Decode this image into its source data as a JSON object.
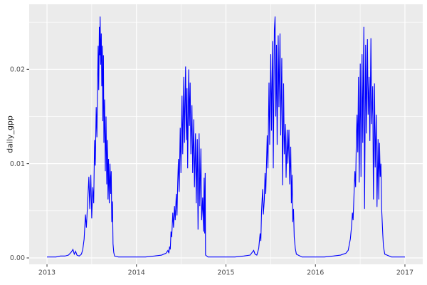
{
  "figure": {
    "background": "#FFFFFF",
    "panel_bg": "#EBEBEB",
    "grid_major_color": "#FFFFFF",
    "grid_minor_color": "#FFFFFF",
    "tick_mark_color": "#333333",
    "axis_text_color": "#4D4D4D",
    "axis_title_color": "#1A1A1A"
  },
  "chart_data": {
    "type": "line",
    "title": "",
    "xlabel": "",
    "ylabel": "daily_gpp",
    "legend_position": "none",
    "grid": true,
    "xlim": [
      2012.801,
      2017.199
    ],
    "ylim": [
      -0.00068,
      0.0269
    ],
    "x_ticks": [
      {
        "value": 2013,
        "label": "2013"
      },
      {
        "value": 2014,
        "label": "2014"
      },
      {
        "value": 2015,
        "label": "2015"
      },
      {
        "value": 2016,
        "label": "2016"
      },
      {
        "value": 2017,
        "label": "2017"
      }
    ],
    "y_ticks": [
      {
        "value": 0.0,
        "label": "0.00"
      },
      {
        "value": 0.01,
        "label": "0.01"
      },
      {
        "value": 0.02,
        "label": "0.02"
      }
    ],
    "x_minor_gridlines": [
      2013.5,
      2014.5,
      2015.5,
      2016.5
    ],
    "y_minor_gridlines": [
      0.005,
      0.015,
      0.025
    ],
    "series": [
      {
        "name": "daily_gpp",
        "color": "#0000FF",
        "points": [
          [
            2013.0,
            0.0001
          ],
          [
            2013.05,
            0.0001
          ],
          [
            2013.1,
            0.0001
          ],
          [
            2013.15,
            0.0002
          ],
          [
            2013.2,
            0.0002
          ],
          [
            2013.24,
            0.0003
          ],
          [
            2013.27,
            0.0006
          ],
          [
            2013.29,
            0.0009
          ],
          [
            2013.305,
            0.0004
          ],
          [
            2013.32,
            0.0007
          ],
          [
            2013.335,
            0.0003
          ],
          [
            2013.36,
            0.0002
          ],
          [
            2013.385,
            0.0004
          ],
          [
            2013.4,
            0.0009
          ],
          [
            2013.415,
            0.002
          ],
          [
            2013.43,
            0.0046
          ],
          [
            2013.44,
            0.0032
          ],
          [
            2013.455,
            0.006
          ],
          [
            2013.468,
            0.0086
          ],
          [
            2013.478,
            0.0052
          ],
          [
            2013.49,
            0.0088
          ],
          [
            2013.5,
            0.0042
          ],
          [
            2013.512,
            0.0075
          ],
          [
            2013.522,
            0.0058
          ],
          [
            2013.532,
            0.0125
          ],
          [
            2013.54,
            0.0098
          ],
          [
            2013.55,
            0.016
          ],
          [
            2013.558,
            0.0128
          ],
          [
            2013.565,
            0.0182
          ],
          [
            2013.572,
            0.0225
          ],
          [
            2013.578,
            0.0178
          ],
          [
            2013.585,
            0.0245
          ],
          [
            2013.59,
            0.0215
          ],
          [
            2013.594,
            0.0256
          ],
          [
            2013.6,
            0.0205
          ],
          [
            2013.607,
            0.0238
          ],
          [
            2013.612,
            0.0182
          ],
          [
            2013.619,
            0.0225
          ],
          [
            2013.624,
            0.0145
          ],
          [
            2013.631,
            0.0215
          ],
          [
            2013.636,
            0.0122
          ],
          [
            2013.644,
            0.0168
          ],
          [
            2013.652,
            0.0092
          ],
          [
            2013.66,
            0.015
          ],
          [
            2013.668,
            0.0078
          ],
          [
            2013.676,
            0.0125
          ],
          [
            2013.682,
            0.0062
          ],
          [
            2013.688,
            0.0105
          ],
          [
            2013.696,
            0.0058
          ],
          [
            2013.704,
            0.01
          ],
          [
            2013.712,
            0.0068
          ],
          [
            2013.718,
            0.0092
          ],
          [
            2013.724,
            0.0038
          ],
          [
            2013.732,
            0.006
          ],
          [
            2013.738,
            0.0015
          ],
          [
            2013.746,
            0.0006
          ],
          [
            2013.755,
            0.0002
          ],
          [
            2013.8,
            0.0001
          ],
          [
            2013.9,
            0.0001
          ],
          [
            2014.0,
            0.0001
          ],
          [
            2014.1,
            0.0001
          ],
          [
            2014.2,
            0.0002
          ],
          [
            2014.28,
            0.0003
          ],
          [
            2014.33,
            0.0005
          ],
          [
            2014.352,
            0.0008
          ],
          [
            2014.362,
            0.0005
          ],
          [
            2014.37,
            0.0012
          ],
          [
            2014.378,
            0.0009
          ],
          [
            2014.386,
            0.0028
          ],
          [
            2014.394,
            0.0022
          ],
          [
            2014.406,
            0.0048
          ],
          [
            2014.414,
            0.0032
          ],
          [
            2014.425,
            0.0055
          ],
          [
            2014.433,
            0.004
          ],
          [
            2014.445,
            0.0068
          ],
          [
            2014.453,
            0.0045
          ],
          [
            2014.461,
            0.008
          ],
          [
            2014.469,
            0.0105
          ],
          [
            2014.477,
            0.007
          ],
          [
            2014.489,
            0.0138
          ],
          [
            2014.497,
            0.009
          ],
          [
            2014.509,
            0.0172
          ],
          [
            2014.517,
            0.011
          ],
          [
            2014.529,
            0.0192
          ],
          [
            2014.537,
            0.0122
          ],
          [
            2014.549,
            0.0203
          ],
          [
            2014.557,
            0.0125
          ],
          [
            2014.565,
            0.018
          ],
          [
            2014.572,
            0.0095
          ],
          [
            2014.584,
            0.02
          ],
          [
            2014.592,
            0.014
          ],
          [
            2014.6,
            0.0186
          ],
          [
            2014.608,
            0.011
          ],
          [
            2014.62,
            0.0162
          ],
          [
            2014.628,
            0.009
          ],
          [
            2014.64,
            0.0147
          ],
          [
            2014.648,
            0.0075
          ],
          [
            2014.66,
            0.0132
          ],
          [
            2014.668,
            0.0058
          ],
          [
            2014.68,
            0.0126
          ],
          [
            2014.688,
            0.003
          ],
          [
            2014.7,
            0.0132
          ],
          [
            2014.708,
            0.0055
          ],
          [
            2014.72,
            0.0116
          ],
          [
            2014.728,
            0.004
          ],
          [
            2014.74,
            0.0064
          ],
          [
            2014.748,
            0.0028
          ],
          [
            2014.756,
            0.0085
          ],
          [
            2014.762,
            0.0026
          ],
          [
            2014.768,
            0.009
          ],
          [
            2014.772,
            0.0003
          ],
          [
            2014.8,
            0.0001
          ],
          [
            2014.9,
            0.0001
          ],
          [
            2015.0,
            0.0001
          ],
          [
            2015.1,
            0.0001
          ],
          [
            2015.2,
            0.0002
          ],
          [
            2015.27,
            0.0003
          ],
          [
            2015.31,
            0.0008
          ],
          [
            2015.325,
            0.0004
          ],
          [
            2015.345,
            0.0003
          ],
          [
            2015.366,
            0.001
          ],
          [
            2015.382,
            0.0026
          ],
          [
            2015.39,
            0.0018
          ],
          [
            2015.398,
            0.005
          ],
          [
            2015.41,
            0.0073
          ],
          [
            2015.418,
            0.0046
          ],
          [
            2015.429,
            0.0062
          ],
          [
            2015.437,
            0.009
          ],
          [
            2015.445,
            0.0068
          ],
          [
            2015.461,
            0.013
          ],
          [
            2015.469,
            0.0095
          ],
          [
            2015.481,
            0.0186
          ],
          [
            2015.489,
            0.012
          ],
          [
            2015.501,
            0.0216
          ],
          [
            2015.509,
            0.0135
          ],
          [
            2015.521,
            0.023
          ],
          [
            2015.529,
            0.0095
          ],
          [
            2015.541,
            0.0242
          ],
          [
            2015.549,
            0.0256
          ],
          [
            2015.557,
            0.015
          ],
          [
            2015.565,
            0.0226
          ],
          [
            2015.572,
            0.012
          ],
          [
            2015.584,
            0.0236
          ],
          [
            2015.592,
            0.016
          ],
          [
            2015.604,
            0.0238
          ],
          [
            2015.612,
            0.013
          ],
          [
            2015.624,
            0.0212
          ],
          [
            2015.632,
            0.0077
          ],
          [
            2015.644,
            0.0185
          ],
          [
            2015.652,
            0.011
          ],
          [
            2015.664,
            0.0142
          ],
          [
            2015.672,
            0.0085
          ],
          [
            2015.684,
            0.0136
          ],
          [
            2015.692,
            0.01
          ],
          [
            2015.704,
            0.0136
          ],
          [
            2015.712,
            0.0078
          ],
          [
            2015.724,
            0.0118
          ],
          [
            2015.731,
            0.0058
          ],
          [
            2015.739,
            0.0088
          ],
          [
            2015.747,
            0.0038
          ],
          [
            2015.755,
            0.0052
          ],
          [
            2015.763,
            0.0022
          ],
          [
            2015.775,
            0.001
          ],
          [
            2015.787,
            0.0004
          ],
          [
            2015.85,
            0.0001
          ],
          [
            2015.95,
            0.0001
          ],
          [
            2016.0,
            0.0001
          ],
          [
            2016.1,
            0.0001
          ],
          [
            2016.2,
            0.0002
          ],
          [
            2016.28,
            0.0003
          ],
          [
            2016.34,
            0.0005
          ],
          [
            2016.366,
            0.0008
          ],
          [
            2016.39,
            0.002
          ],
          [
            2016.405,
            0.0035
          ],
          [
            2016.413,
            0.0048
          ],
          [
            2016.421,
            0.004
          ],
          [
            2016.429,
            0.0062
          ],
          [
            2016.441,
            0.0092
          ],
          [
            2016.449,
            0.0075
          ],
          [
            2016.457,
            0.0125
          ],
          [
            2016.465,
            0.0152
          ],
          [
            2016.473,
            0.0112
          ],
          [
            2016.481,
            0.0192
          ],
          [
            2016.489,
            0.008
          ],
          [
            2016.501,
            0.0206
          ],
          [
            2016.509,
            0.0086
          ],
          [
            2016.521,
            0.0216
          ],
          [
            2016.529,
            0.0122
          ],
          [
            2016.541,
            0.0245
          ],
          [
            2016.549,
            0.0052
          ],
          [
            2016.561,
            0.0226
          ],
          [
            2016.569,
            0.0132
          ],
          [
            2016.581,
            0.0232
          ],
          [
            2016.589,
            0.0152
          ],
          [
            2016.6,
            0.0192
          ],
          [
            2016.608,
            0.0124
          ],
          [
            2016.62,
            0.0233
          ],
          [
            2016.628,
            0.0142
          ],
          [
            2016.64,
            0.0182
          ],
          [
            2016.648,
            0.0062
          ],
          [
            2016.66,
            0.0185
          ],
          [
            2016.668,
            0.0096
          ],
          [
            2016.68,
            0.0152
          ],
          [
            2016.688,
            0.0054
          ],
          [
            2016.7,
            0.0126
          ],
          [
            2016.708,
            0.0062
          ],
          [
            2016.716,
            0.0122
          ],
          [
            2016.724,
            0.0086
          ],
          [
            2016.732,
            0.01
          ],
          [
            2016.74,
            0.0052
          ],
          [
            2016.752,
            0.0026
          ],
          [
            2016.76,
            0.0012
          ],
          [
            2016.775,
            0.0004
          ],
          [
            2016.85,
            0.0001
          ],
          [
            2016.95,
            0.0001
          ],
          [
            2017.0,
            0.0001
          ]
        ]
      }
    ]
  }
}
